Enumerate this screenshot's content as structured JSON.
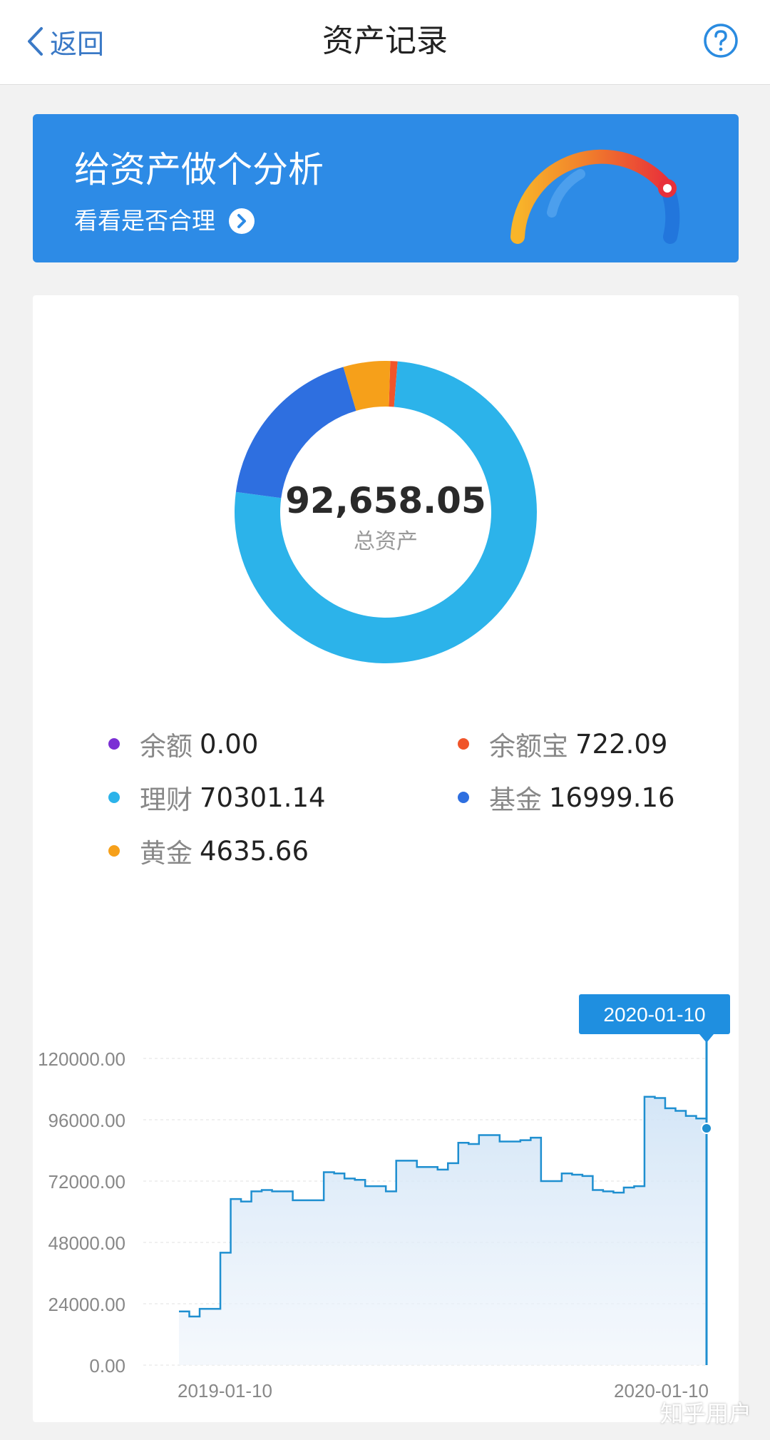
{
  "header": {
    "back_label": "返回",
    "title": "资产记录",
    "help_icon": "question-circle-icon"
  },
  "banner": {
    "title": "给资产做个分析",
    "subtitle": "看看是否合理",
    "arrow_icon": "chevron-right-circle-icon",
    "gauge_icon": "gauge-icon"
  },
  "summary": {
    "total_value": "92,658.05",
    "total_label": "总资产"
  },
  "legend": [
    {
      "name": "余额",
      "value": "0.00",
      "color": "#7b2fd4"
    },
    {
      "name": "余额宝",
      "value": "722.09",
      "color": "#f0552a"
    },
    {
      "name": "理财",
      "value": "70301.14",
      "color": "#2cb3ea"
    },
    {
      "name": "基金",
      "value": "16999.16",
      "color": "#2e6fe0"
    },
    {
      "name": "黄金",
      "value": "4635.66",
      "color": "#f6a01a"
    }
  ],
  "chart_data": {
    "type": "area",
    "ylim": [
      0,
      120000
    ],
    "yticks": [
      "120000.00",
      "96000.00",
      "72000.00",
      "48000.00",
      "24000.00",
      "0.00"
    ],
    "x_labels": [
      "2019-01-10",
      "2020-01-10"
    ],
    "tooltip_label": "2020-01-10",
    "line_color": "#1f8fd0",
    "series": [
      {
        "values": [
          21000,
          19000,
          22000,
          22000,
          44000,
          65000,
          64000,
          68000,
          68500,
          68000,
          68000,
          64500,
          64500,
          64500,
          75500,
          75000,
          73000,
          72500,
          70000,
          70000,
          68000,
          80000,
          80000,
          77500,
          77500,
          76500,
          79000,
          87000,
          86500,
          90000,
          90000,
          87500,
          87500,
          88000,
          89000,
          72000,
          72000,
          75000,
          74500,
          74000,
          68500,
          68000,
          67500,
          69500,
          70000,
          105000,
          104500,
          100500,
          99500,
          97500,
          96500,
          92658
        ]
      }
    ]
  },
  "watermark": "知乎用户"
}
